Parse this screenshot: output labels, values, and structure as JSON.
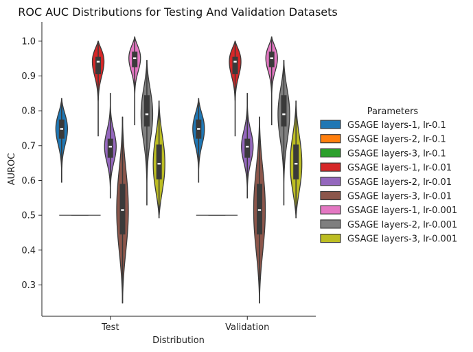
{
  "chart_data": {
    "type": "violin",
    "title": "ROC AUC Distributions for Testing And Validation Datasets",
    "xlabel": "Distribution",
    "ylabel": "AUROC",
    "categories": [
      "Test",
      "Validation"
    ],
    "ylim": [
      0.21,
      1.055
    ],
    "yticks": [
      0.3,
      0.4,
      0.5,
      0.6,
      0.7,
      0.8,
      0.9,
      1.0
    ],
    "ytick_labels": [
      "0.3",
      "0.4",
      "0.5",
      "0.6",
      "0.7",
      "0.8",
      "0.9",
      "1.0"
    ],
    "grid": false,
    "legend": {
      "title": "Parameters",
      "placement": "right"
    },
    "series": [
      {
        "name": "GSAGE layers-1, lr-0.1",
        "color": "#1f77b4",
        "min": 0.595,
        "q1": 0.72,
        "median": 0.748,
        "q3": 0.775,
        "max": 0.835
      },
      {
        "name": "GSAGE layers-2, lr-0.1",
        "color": "#ff7f0e",
        "min": 0.5,
        "q1": 0.5,
        "median": 0.5,
        "q3": 0.5,
        "max": 0.5
      },
      {
        "name": "GSAGE layers-3, lr-0.1",
        "color": "#2ca02c",
        "min": 0.5,
        "q1": 0.5,
        "median": 0.5,
        "q3": 0.5,
        "max": 0.5
      },
      {
        "name": "GSAGE layers-1, lr-0.01",
        "color": "#d62728",
        "min": 0.728,
        "q1": 0.905,
        "median": 0.941,
        "q3": 0.955,
        "max": 1.0
      },
      {
        "name": "GSAGE layers-2, lr-0.01",
        "color": "#9467bd",
        "min": 0.55,
        "q1": 0.665,
        "median": 0.697,
        "q3": 0.72,
        "max": 0.85
      },
      {
        "name": "GSAGE layers-3, lr-0.01",
        "color": "#8c564b",
        "min": 0.248,
        "q1": 0.445,
        "median": 0.515,
        "q3": 0.59,
        "max": 0.782
      },
      {
        "name": "GSAGE layers-1, lr-0.001",
        "color": "#e377c2",
        "min": 0.76,
        "q1": 0.925,
        "median": 0.951,
        "q3": 0.97,
        "max": 1.012
      },
      {
        "name": "GSAGE layers-2, lr-0.001",
        "color": "#7f7f7f",
        "min": 0.53,
        "q1": 0.755,
        "median": 0.79,
        "q3": 0.845,
        "max": 0.945
      },
      {
        "name": "GSAGE layers-3, lr-0.001",
        "color": "#bcbd22",
        "min": 0.493,
        "q1": 0.603,
        "median": 0.648,
        "q3": 0.703,
        "max": 0.828
      }
    ]
  }
}
